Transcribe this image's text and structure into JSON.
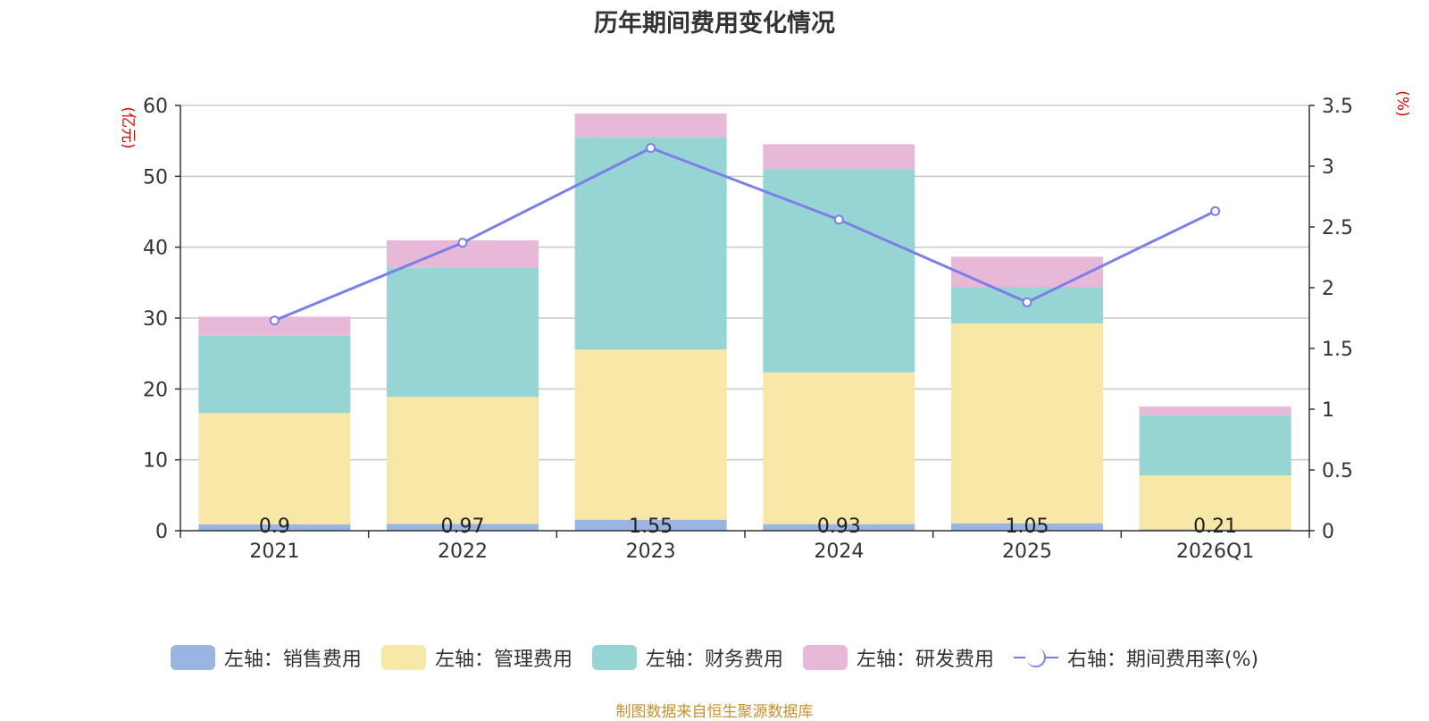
{
  "chart_data": {
    "type": "bar",
    "stacked": true,
    "title": "历年期间费用变化情况",
    "categories": [
      "2021",
      "2022",
      "2023",
      "2024",
      "2025",
      "2026Q1"
    ],
    "left_axis": {
      "label": "(亿元)",
      "ylim": [
        0,
        60
      ],
      "ticks": [
        0,
        10,
        20,
        30,
        40,
        50,
        60
      ],
      "tick_labels": [
        "0",
        "10",
        "20",
        "30",
        "40",
        "50",
        "60"
      ]
    },
    "right_axis": {
      "label": "(%)",
      "ylim": [
        0,
        3.5
      ],
      "ticks": [
        0,
        0.5,
        1,
        1.5,
        2,
        2.5,
        3,
        3.5
      ],
      "tick_labels": [
        "0",
        "0.5",
        "1",
        "1.5",
        "2",
        "2.5",
        "3",
        "3.5"
      ]
    },
    "series": [
      {
        "name": "左轴：销售费用",
        "axis": "left",
        "type": "bar",
        "color": "#9bb5e2",
        "values": [
          0.9,
          0.97,
          1.55,
          0.93,
          1.05,
          0.21
        ],
        "labels": [
          "0.9",
          "0.97",
          "1.55",
          "0.93",
          "1.05",
          "0.21"
        ]
      },
      {
        "name": "左轴：管理费用",
        "axis": "left",
        "type": "bar",
        "color": "#f8e8a8",
        "values": [
          15.7,
          17.9,
          24.0,
          21.4,
          28.2,
          7.6
        ]
      },
      {
        "name": "左轴：财务费用",
        "axis": "left",
        "type": "bar",
        "color": "#97d4d4",
        "values": [
          10.9,
          18.2,
          30.0,
          28.7,
          5.1,
          8.5
        ]
      },
      {
        "name": "左轴：研发费用",
        "axis": "left",
        "type": "bar",
        "color": "#e8b8d8",
        "values": [
          2.7,
          3.9,
          3.3,
          3.5,
          4.3,
          1.2
        ]
      },
      {
        "name": "右轴：期间费用率(%)",
        "axis": "right",
        "type": "line",
        "color": "#7b7fe8",
        "values": [
          1.73,
          2.37,
          3.15,
          2.56,
          1.88,
          2.63
        ]
      }
    ],
    "legend_position": "bottom",
    "source": "制图数据来自恒生聚源数据库"
  }
}
